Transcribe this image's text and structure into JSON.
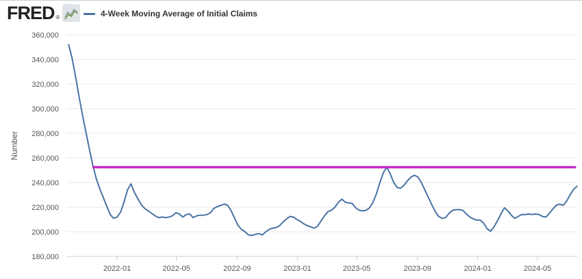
{
  "header": {
    "logo_text": "FRED",
    "registered_mark": "®",
    "legend": {
      "series_label": "4-Week Moving Average of Initial Claims"
    }
  },
  "colors": {
    "series_line": "#4872a3",
    "user_line": "#c42dc4",
    "gridline": "#e7e7e7",
    "axis_line": "#cccccc",
    "tick_text": "#555555",
    "legend_text": "#333333",
    "logo_text": "#222222",
    "logo_box_bg": "#e0e4e8",
    "logo_squiggle_green": "#7d9b52",
    "logo_squiggle_gray": "#99a4ab"
  },
  "y_axis": {
    "title": "Number",
    "ticks": [
      {
        "value": 180000,
        "label": "180,000"
      },
      {
        "value": 200000,
        "label": "200,000"
      },
      {
        "value": 220000,
        "label": "220,000"
      },
      {
        "value": 240000,
        "label": "240,000"
      },
      {
        "value": 260000,
        "label": "260,000"
      },
      {
        "value": 280000,
        "label": "280,000"
      },
      {
        "value": 300000,
        "label": "300,000"
      },
      {
        "value": 320000,
        "label": "320,000"
      },
      {
        "value": 340000,
        "label": "340,000"
      },
      {
        "value": 360000,
        "label": "360,000"
      }
    ]
  },
  "x_axis": {
    "ticks": [
      {
        "date": "2022-01-01",
        "label": "2022-01"
      },
      {
        "date": "2022-05-01",
        "label": "2022-05"
      },
      {
        "date": "2022-09-01",
        "label": "2022-09"
      },
      {
        "date": "2023-01-01",
        "label": "2023-01"
      },
      {
        "date": "2023-05-01",
        "label": "2023-05"
      },
      {
        "date": "2023-09-01",
        "label": "2023-09"
      },
      {
        "date": "2024-01-01",
        "label": "2024-01"
      },
      {
        "date": "2024-05-01",
        "label": "2024-05"
      }
    ]
  },
  "chart_data": {
    "type": "line",
    "title": "4-Week Moving Average of Initial Claims",
    "ylabel": "Number",
    "ylim": [
      180000,
      360000
    ],
    "y_tick_step": 20000,
    "grid": "horizontal",
    "legend_position": "top-left",
    "frequency": "weekly",
    "x_start_date": "2021-09-25",
    "x_step_days": 7,
    "x_end_date": "2024-07-20",
    "values": [
      352000,
      341000,
      326000,
      310000,
      295000,
      281000,
      267000,
      254000,
      243000,
      235000,
      228000,
      221000,
      214000,
      211000,
      212000,
      216000,
      224000,
      234000,
      239000,
      232000,
      227000,
      222000,
      219000,
      217000,
      215000,
      213000,
      211500,
      212000,
      211500,
      212000,
      213000,
      215500,
      214500,
      212000,
      214000,
      214500,
      211500,
      213000,
      213500,
      213500,
      214000,
      215500,
      219000,
      220500,
      221500,
      222500,
      221500,
      217000,
      211000,
      205000,
      202000,
      200000,
      197500,
      197000,
      198000,
      198500,
      197500,
      200000,
      202000,
      203000,
      203500,
      205000,
      208000,
      210500,
      212500,
      212000,
      210000,
      208500,
      206500,
      205000,
      204000,
      203000,
      204500,
      209000,
      213000,
      216500,
      217500,
      220000,
      224000,
      226500,
      224000,
      223500,
      223000,
      219500,
      217500,
      217000,
      217500,
      219500,
      224000,
      231000,
      240000,
      248000,
      252500,
      247000,
      240000,
      236000,
      235500,
      238000,
      241500,
      244500,
      246000,
      244500,
      240000,
      234000,
      228000,
      222000,
      216500,
      212500,
      211000,
      211500,
      215000,
      217500,
      218000,
      218000,
      217500,
      214500,
      212000,
      210500,
      209500,
      209500,
      207000,
      202500,
      200500,
      204000,
      209000,
      214500,
      219500,
      217000,
      213500,
      211000,
      212500,
      214000,
      214000,
      214500,
      214000,
      214500,
      214000,
      212500,
      212000,
      215000,
      218500,
      221500,
      222500,
      221500,
      225000,
      230000,
      234500,
      237000
    ],
    "annotations": [
      {
        "type": "horizontal-line",
        "name": "user-drawn-line",
        "value": 252500,
        "from": "2021-11-14",
        "to": "2024-07-16",
        "color": "#c42dc4"
      }
    ]
  }
}
